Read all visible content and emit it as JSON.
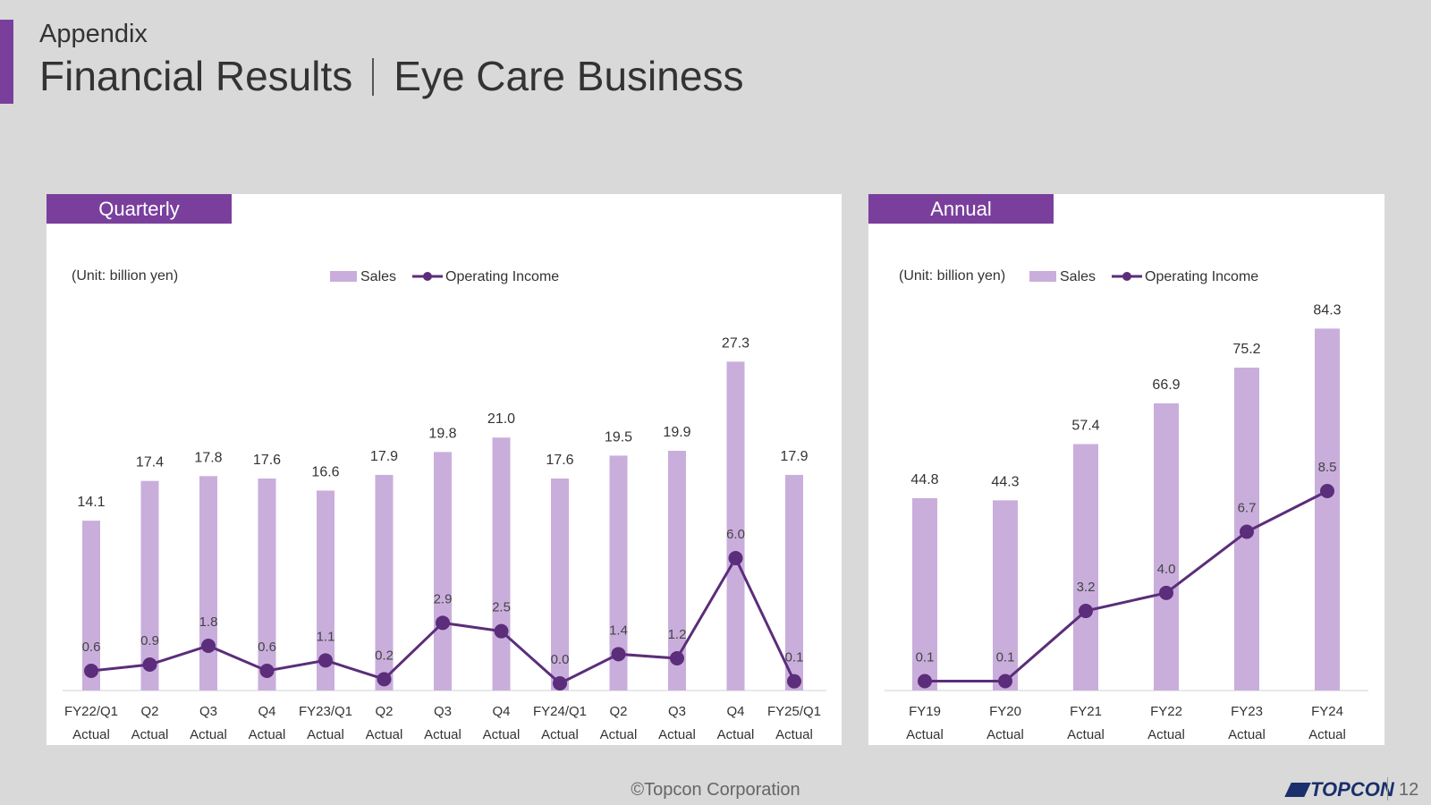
{
  "header": {
    "section": "Appendix",
    "title_left": "Financial Results",
    "title_right": "Eye Care Business"
  },
  "panels": {
    "quarterly_label": "Quarterly",
    "annual_label": "Annual"
  },
  "colors": {
    "accent": "#7a3f9d",
    "bar": "#c9aedc",
    "line": "#5b2d7a"
  },
  "chart_data": [
    {
      "type": "bar",
      "title": "Quarterly",
      "unit_label": "(Unit: billion yen)",
      "legend": [
        "Sales",
        "Operating Income"
      ],
      "categories": [
        "FY22/Q1",
        "Q2",
        "Q3",
        "Q4",
        "FY23/Q1",
        "Q2",
        "Q3",
        "Q4",
        "FY24/Q1",
        "Q2",
        "Q3",
        "Q4",
        "FY25/Q1"
      ],
      "category_sublabel": "Actual",
      "series": [
        {
          "name": "Sales",
          "type": "bar",
          "values": [
            14.1,
            17.4,
            17.8,
            17.6,
            16.6,
            17.9,
            19.8,
            21.0,
            17.6,
            19.5,
            19.9,
            27.3,
            17.9
          ],
          "labels": [
            "14.1",
            "17.4",
            "17.8",
            "17.6",
            "16.6",
            "17.9",
            "19.8",
            "21.0",
            "17.6",
            "19.5",
            "19.9",
            "27.3",
            "17.9"
          ]
        },
        {
          "name": "Operating Income",
          "type": "line",
          "values": [
            0.6,
            0.9,
            1.8,
            0.6,
            1.1,
            0.2,
            2.9,
            2.5,
            0.0,
            1.4,
            1.2,
            6.0,
            0.1
          ],
          "labels": [
            "0.6",
            "0.9",
            "1.8",
            "0.6",
            "1.1",
            "0.2",
            "2.9",
            "2.5",
            "0.0",
            "1.4",
            "1.2",
            "6.0",
            "0.1"
          ]
        }
      ],
      "ylim": [
        0,
        30
      ],
      "grid": false,
      "legend_position": "top"
    },
    {
      "type": "bar",
      "title": "Annual",
      "unit_label": "(Unit: billion yen)",
      "legend": [
        "Sales",
        "Operating Income"
      ],
      "categories": [
        "FY19",
        "FY20",
        "FY21",
        "FY22",
        "FY23",
        "FY24"
      ],
      "category_sublabel": "Actual",
      "series": [
        {
          "name": "Sales",
          "type": "bar",
          "values": [
            44.8,
            44.3,
            57.4,
            66.9,
            75.2,
            84.3
          ],
          "labels": [
            "44.8",
            "44.3",
            "57.4",
            "66.9",
            "75.2",
            "84.3"
          ]
        },
        {
          "name": "Operating Income",
          "type": "line",
          "values": [
            0.1,
            0.1,
            3.2,
            4.0,
            6.7,
            8.5
          ],
          "labels": [
            "0.1",
            "0.1",
            "3.2",
            "4.0",
            "6.7",
            "8.5"
          ]
        }
      ],
      "ylim": [
        0,
        90
      ],
      "grid": false,
      "legend_position": "top"
    }
  ],
  "footer": {
    "copyright": "©Topcon Corporation",
    "logo_text": "TOPCON",
    "page_number": "12"
  }
}
